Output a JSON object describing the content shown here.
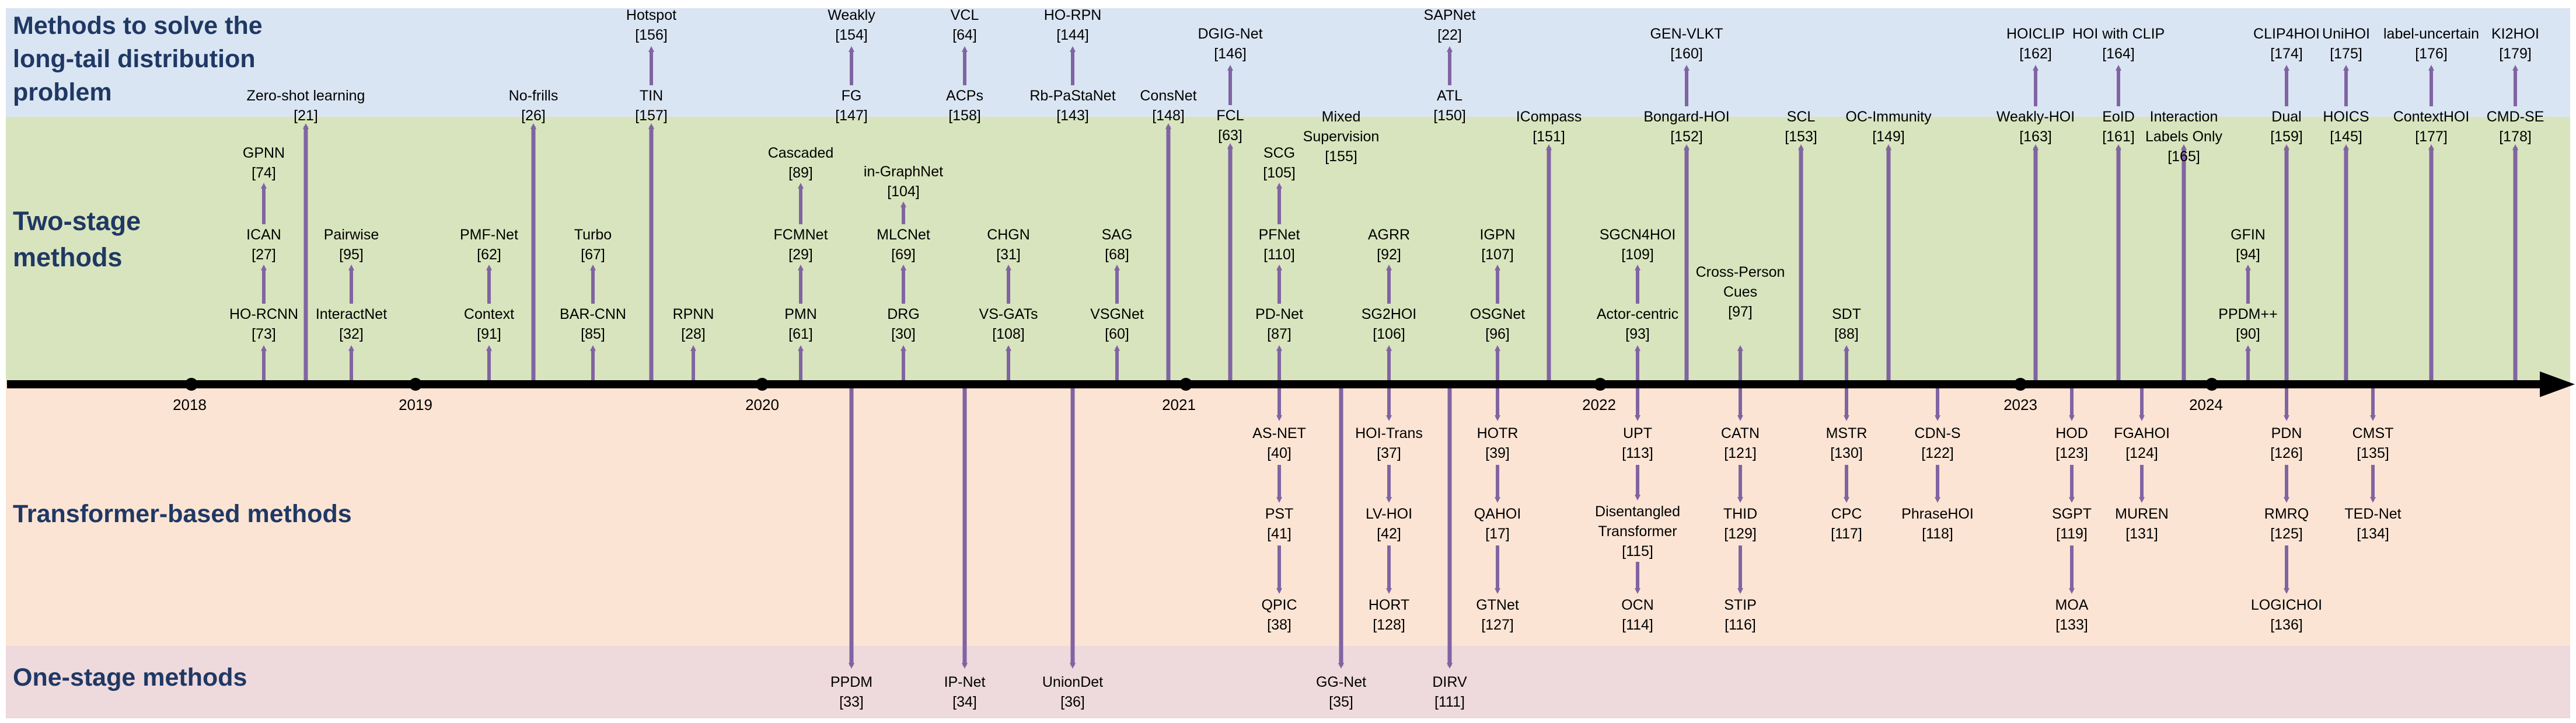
{
  "sections": {
    "long_tail": {
      "line1": "Methods to solve the",
      "line2": "long-tail distribution",
      "line3": "problem"
    },
    "two_stage": {
      "line1": "Two-stage",
      "line2": "methods"
    },
    "transformer": "Transformer-based methods",
    "one_stage": "One-stage methods"
  },
  "colors": {
    "long_tail_band": "#dae5f3",
    "two_stage_band": "#d8e4bd",
    "transformer_band": "#fce4d4",
    "one_stage_band": "#eed9dc",
    "arrow": "#8064a2",
    "timeline": "#000000",
    "label_text": "#1f3864"
  },
  "years": [
    "2018",
    "2019",
    "2020",
    "2021",
    "2022",
    "2023",
    "2024"
  ],
  "methods": [
    {
      "name": "Zero-shot learning",
      "ref": "[21]",
      "group": "long_tail"
    },
    {
      "name": "No-frills",
      "ref": "[26]",
      "group": "long_tail"
    },
    {
      "name": "Hotspot",
      "ref": "[156]",
      "group": "long_tail"
    },
    {
      "name": "TIN",
      "ref": "[157]",
      "group": "long_tail"
    },
    {
      "name": "Weakly",
      "ref": "[154]",
      "group": "long_tail"
    },
    {
      "name": "FG",
      "ref": "[147]",
      "group": "long_tail"
    },
    {
      "name": "VCL",
      "ref": "[64]",
      "group": "long_tail"
    },
    {
      "name": "ACPs",
      "ref": "[158]",
      "group": "long_tail"
    },
    {
      "name": "HO-RPN",
      "ref": "[144]",
      "group": "long_tail"
    },
    {
      "name": "Rb-PaStaNet",
      "ref": "[143]",
      "group": "long_tail"
    },
    {
      "name": "ConsNet",
      "ref": "[148]",
      "group": "long_tail"
    },
    {
      "name": "DGIG-Net",
      "ref": "[146]",
      "group": "long_tail"
    },
    {
      "name": "FCL",
      "ref": "[63]",
      "group": "long_tail"
    },
    {
      "name": "Mixed Supervision",
      "ref": "[155]",
      "group": "long_tail"
    },
    {
      "name": "SAPNet",
      "ref": "[22]",
      "group": "long_tail"
    },
    {
      "name": "ATL",
      "ref": "[150]",
      "group": "long_tail"
    },
    {
      "name": "ICompass",
      "ref": "[151]",
      "group": "long_tail"
    },
    {
      "name": "GEN-VLKT",
      "ref": "[160]",
      "group": "long_tail"
    },
    {
      "name": "Bongard-HOI",
      "ref": "[152]",
      "group": "long_tail"
    },
    {
      "name": "SCL",
      "ref": "[153]",
      "group": "long_tail"
    },
    {
      "name": "OC-Immunity",
      "ref": "[149]",
      "group": "long_tail"
    },
    {
      "name": "HOICLIP",
      "ref": "[162]",
      "group": "long_tail"
    },
    {
      "name": "Weakly-HOI",
      "ref": "[163]",
      "group": "long_tail"
    },
    {
      "name": "HOI with CLIP",
      "ref": "[164]",
      "group": "long_tail"
    },
    {
      "name": "EoID",
      "ref": "[161]",
      "group": "long_tail"
    },
    {
      "name": "Interaction Labels Only",
      "ref": "[165]",
      "group": "long_tail"
    },
    {
      "name": "CLIP4HOI",
      "ref": "[174]",
      "group": "long_tail"
    },
    {
      "name": "Dual",
      "ref": "[159]",
      "group": "long_tail"
    },
    {
      "name": "UniHOI",
      "ref": "[175]",
      "group": "long_tail"
    },
    {
      "name": "HOICS",
      "ref": "[145]",
      "group": "long_tail"
    },
    {
      "name": "label-uncertain",
      "ref": "[176]",
      "group": "long_tail"
    },
    {
      "name": "ContextHOI",
      "ref": "[177]",
      "group": "long_tail"
    },
    {
      "name": "KI2HOI",
      "ref": "[179]",
      "group": "long_tail"
    },
    {
      "name": "CMD-SE",
      "ref": "[178]",
      "group": "long_tail"
    },
    {
      "name": "GPNN",
      "ref": "[74]",
      "group": "two_stage"
    },
    {
      "name": "ICAN",
      "ref": "[27]",
      "group": "two_stage"
    },
    {
      "name": "HO-RCNN",
      "ref": "[73]",
      "group": "two_stage"
    },
    {
      "name": "Pairwise",
      "ref": "[95]",
      "group": "two_stage"
    },
    {
      "name": "InteractNet",
      "ref": "[32]",
      "group": "two_stage"
    },
    {
      "name": "PMF-Net",
      "ref": "[62]",
      "group": "two_stage"
    },
    {
      "name": "Context",
      "ref": "[91]",
      "group": "two_stage"
    },
    {
      "name": "Turbo",
      "ref": "[67]",
      "group": "two_stage"
    },
    {
      "name": "BAR-CNN",
      "ref": "[85]",
      "group": "two_stage"
    },
    {
      "name": "RPNN",
      "ref": "[28]",
      "group": "two_stage"
    },
    {
      "name": "Cascaded",
      "ref": "[89]",
      "group": "two_stage"
    },
    {
      "name": "FCMNet",
      "ref": "[29]",
      "group": "two_stage"
    },
    {
      "name": "PMN",
      "ref": "[61]",
      "group": "two_stage"
    },
    {
      "name": "in-GraphNet",
      "ref": "[104]",
      "group": "two_stage"
    },
    {
      "name": "MLCNet",
      "ref": "[69]",
      "group": "two_stage"
    },
    {
      "name": "DRG",
      "ref": "[30]",
      "group": "two_stage"
    },
    {
      "name": "CHGN",
      "ref": "[31]",
      "group": "two_stage"
    },
    {
      "name": "VS-GATs",
      "ref": "[108]",
      "group": "two_stage"
    },
    {
      "name": "SAG",
      "ref": "[68]",
      "group": "two_stage"
    },
    {
      "name": "VSGNet",
      "ref": "[60]",
      "group": "two_stage"
    },
    {
      "name": "SCG",
      "ref": "[105]",
      "group": "two_stage"
    },
    {
      "name": "PFNet",
      "ref": "[110]",
      "group": "two_stage"
    },
    {
      "name": "PD-Net",
      "ref": "[87]",
      "group": "two_stage"
    },
    {
      "name": "AGRR",
      "ref": "[92]",
      "group": "two_stage"
    },
    {
      "name": "SG2HOI",
      "ref": "[106]",
      "group": "two_stage"
    },
    {
      "name": "IGPN",
      "ref": "[107]",
      "group": "two_stage"
    },
    {
      "name": "OSGNet",
      "ref": "[96]",
      "group": "two_stage"
    },
    {
      "name": "SGCN4HOI",
      "ref": "[109]",
      "group": "two_stage"
    },
    {
      "name": "Actor-centric",
      "ref": "[93]",
      "group": "two_stage"
    },
    {
      "name": "Cross-Person Cues",
      "ref": "[97]",
      "group": "two_stage"
    },
    {
      "name": "SDT",
      "ref": "[88]",
      "group": "two_stage"
    },
    {
      "name": "GFIN",
      "ref": "[94]",
      "group": "two_stage"
    },
    {
      "name": "PPDM++",
      "ref": "[90]",
      "group": "two_stage"
    },
    {
      "name": "AS-NET",
      "ref": "[40]",
      "group": "transformer"
    },
    {
      "name": "PST",
      "ref": "[41]",
      "group": "transformer"
    },
    {
      "name": "QPIC",
      "ref": "[38]",
      "group": "transformer"
    },
    {
      "name": "HOI-Trans",
      "ref": "[37]",
      "group": "transformer"
    },
    {
      "name": "LV-HOI",
      "ref": "[42]",
      "group": "transformer"
    },
    {
      "name": "HORT",
      "ref": "[128]",
      "group": "transformer"
    },
    {
      "name": "HOTR",
      "ref": "[39]",
      "group": "transformer"
    },
    {
      "name": "QAHOI",
      "ref": "[17]",
      "group": "transformer"
    },
    {
      "name": "GTNet",
      "ref": "[127]",
      "group": "transformer"
    },
    {
      "name": "UPT",
      "ref": "[113]",
      "group": "transformer"
    },
    {
      "name": "Disentangled Transformer",
      "ref": "[115]",
      "group": "transformer"
    },
    {
      "name": "OCN",
      "ref": "[114]",
      "group": "transformer"
    },
    {
      "name": "CATN",
      "ref": "[121]",
      "group": "transformer"
    },
    {
      "name": "THID",
      "ref": "[129]",
      "group": "transformer"
    },
    {
      "name": "STIP",
      "ref": "[116]",
      "group": "transformer"
    },
    {
      "name": "MSTR",
      "ref": "[130]",
      "group": "transformer"
    },
    {
      "name": "CPC",
      "ref": "[117]",
      "group": "transformer"
    },
    {
      "name": "CDN-S",
      "ref": "[122]",
      "group": "transformer"
    },
    {
      "name": "PhraseHOI",
      "ref": "[118]",
      "group": "transformer"
    },
    {
      "name": "HOD",
      "ref": "[123]",
      "group": "transformer"
    },
    {
      "name": "SGPT",
      "ref": "[119]",
      "group": "transformer"
    },
    {
      "name": "MOA",
      "ref": "[133]",
      "group": "transformer"
    },
    {
      "name": "FGAHOI",
      "ref": "[124]",
      "group": "transformer"
    },
    {
      "name": "MUREN",
      "ref": "[131]",
      "group": "transformer"
    },
    {
      "name": "PDN",
      "ref": "[126]",
      "group": "transformer"
    },
    {
      "name": "RMRQ",
      "ref": "[125]",
      "group": "transformer"
    },
    {
      "name": "LOGICHOI",
      "ref": "[136]",
      "group": "transformer"
    },
    {
      "name": "CMST",
      "ref": "[135]",
      "group": "transformer"
    },
    {
      "name": "TED-Net",
      "ref": "[134]",
      "group": "transformer"
    },
    {
      "name": "PPDM",
      "ref": "[33]",
      "group": "one_stage"
    },
    {
      "name": "IP-Net",
      "ref": "[34]",
      "group": "one_stage"
    },
    {
      "name": "UnionDet",
      "ref": "[36]",
      "group": "one_stage"
    },
    {
      "name": "GG-Net",
      "ref": "[35]",
      "group": "one_stage"
    },
    {
      "name": "DIRV",
      "ref": "[111]",
      "group": "one_stage"
    }
  ]
}
